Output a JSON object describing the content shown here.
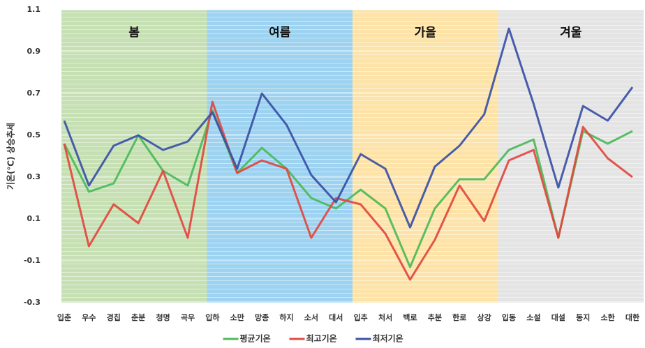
{
  "chart_data": {
    "type": "line",
    "ylabel": "기온(℃) 상승추세",
    "categories": [
      "입춘",
      "우수",
      "경칩",
      "춘분",
      "청명",
      "곡우",
      "입하",
      "소만",
      "망종",
      "하지",
      "소서",
      "대서",
      "입추",
      "처서",
      "백로",
      "추분",
      "한로",
      "상강",
      "입동",
      "소설",
      "대설",
      "동지",
      "소한",
      "대한"
    ],
    "seasons": [
      {
        "name": "봄",
        "color": "#c6e0b4"
      },
      {
        "name": "여름",
        "color": "#9dd3f0"
      },
      {
        "name": "가을",
        "color": "#fde3a7"
      },
      {
        "name": "겨울",
        "color": "#e4e4e4"
      }
    ],
    "series": [
      {
        "name": "평균기온",
        "color": "#4cba5a",
        "values": [
          0.46,
          0.23,
          0.27,
          0.5,
          0.33,
          0.26,
          0.62,
          0.32,
          0.44,
          0.34,
          0.2,
          0.15,
          0.24,
          0.15,
          -0.13,
          0.15,
          0.29,
          0.29,
          0.43,
          0.48,
          0.01,
          0.52,
          0.46,
          0.52
        ]
      },
      {
        "name": "최고기온",
        "color": "#e2483f",
        "values": [
          0.46,
          -0.03,
          0.17,
          0.08,
          0.33,
          0.01,
          0.66,
          0.32,
          0.38,
          0.34,
          0.01,
          0.2,
          0.17,
          0.03,
          -0.19,
          0.0,
          0.26,
          0.09,
          0.38,
          0.43,
          0.01,
          0.54,
          0.39,
          0.3
        ]
      },
      {
        "name": "최저기온",
        "color": "#3a50a6",
        "values": [
          0.57,
          0.26,
          0.45,
          0.5,
          0.43,
          0.47,
          0.61,
          0.34,
          0.7,
          0.55,
          0.31,
          0.18,
          0.41,
          0.34,
          0.06,
          0.35,
          0.45,
          0.6,
          1.01,
          0.65,
          0.25,
          0.64,
          0.57,
          0.73
        ]
      }
    ],
    "ylim": [
      -0.3,
      1.1
    ],
    "yticks": [
      -0.3,
      -0.1,
      0.1,
      0.3,
      0.5,
      0.7,
      0.9,
      1.1
    ],
    "grid": true
  }
}
